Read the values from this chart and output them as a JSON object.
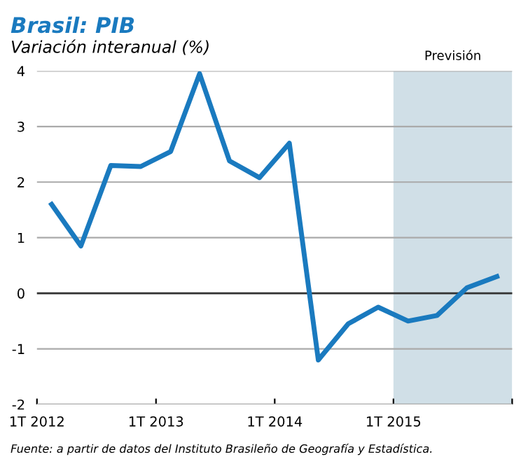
{
  "chart_data": {
    "type": "line",
    "title": "Brasil: PIB",
    "subtitle": "Variación interanual (%)",
    "x": [
      "2012-02-15",
      "2012-05-15",
      "2012-08-15",
      "2012-11-15",
      "2013-02-15",
      "2013-05-15",
      "2013-08-15",
      "2013-11-15",
      "2014-02-15",
      "2014-05-15",
      "2014-08-15",
      "2014-11-15",
      "2015-02-15",
      "2015-05-15",
      "2015-08-15",
      "2015-11-15"
    ],
    "series": [
      {
        "color": "#1a7abf",
        "values": [
          1.6,
          0.85,
          2.3,
          2.28,
          2.55,
          3.95,
          2.38,
          2.08,
          2.7,
          -1.2,
          -0.55,
          -0.25,
          -0.5,
          -0.4,
          0.1,
          0.3
        ]
      }
    ],
    "xlim": [
      "2012-01-01",
      "2016-01-01"
    ],
    "xticks": [
      {
        "value": "2012-01-01",
        "label": "1T 2012"
      },
      {
        "value": "2013-01-01",
        "label": "1T 2013"
      },
      {
        "value": "2014-01-01",
        "label": "1T 2014"
      },
      {
        "value": "2015-01-01",
        "label": "1T 2015"
      },
      {
        "value": "2016-01-01",
        "label": null
      }
    ],
    "ylim": [
      -2,
      4
    ],
    "yticks": [
      -2,
      -1,
      0,
      1,
      2,
      3,
      4
    ],
    "grid": "y",
    "marker": "none",
    "line_style": "solid",
    "bands": [
      {
        "axis": "x",
        "from": "2015-01-01",
        "to": "2016-01-01",
        "label": "Previsión",
        "color": "#d0dfe7"
      }
    ],
    "ref_lines": [
      {
        "axis": "y",
        "value": 0,
        "color": "#333333"
      }
    ],
    "annotations": [
      "Fuente: a partir de datos del Instituto Brasileño de Geografía y Estadística."
    ]
  }
}
